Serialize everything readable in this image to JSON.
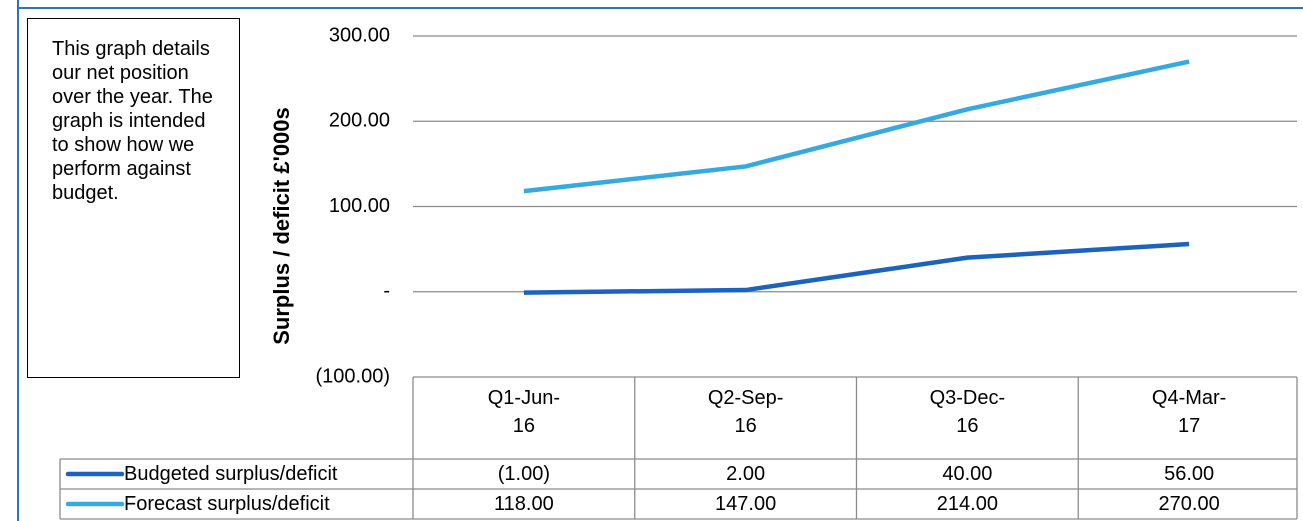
{
  "note": "This graph details our net position over the year. The graph is intended to show how we perform against budget.",
  "chart_data": {
    "type": "line",
    "y_label": "Surplus / deficit £'000s",
    "categories": [
      "Q1-Jun-16",
      "Q2-Sep-16",
      "Q3-Dec-16",
      "Q4-Mar-17"
    ],
    "series": [
      {
        "name": "Budgeted surplus/deficit",
        "color": "#1b63bd",
        "values": [
          -1,
          2,
          40,
          56
        ],
        "value_labels": [
          "(1.00)",
          "2.00",
          "40.00",
          "56.00"
        ]
      },
      {
        "name": "Forecast surplus/deficit",
        "color": "#36a9e0",
        "values": [
          118,
          147,
          214,
          270
        ],
        "value_labels": [
          "118.00",
          "147.00",
          "214.00",
          "270.00"
        ]
      }
    ],
    "ylim": [
      -100,
      300
    ],
    "yticks": [
      {
        "value": 300,
        "label": "300.00"
      },
      {
        "value": 200,
        "label": "200.00"
      },
      {
        "value": 100,
        "label": "100.00"
      },
      {
        "value": 0,
        "label": "-"
      },
      {
        "value": -100,
        "label": "(100.00)"
      }
    ],
    "grid": true,
    "data_table": true
  }
}
